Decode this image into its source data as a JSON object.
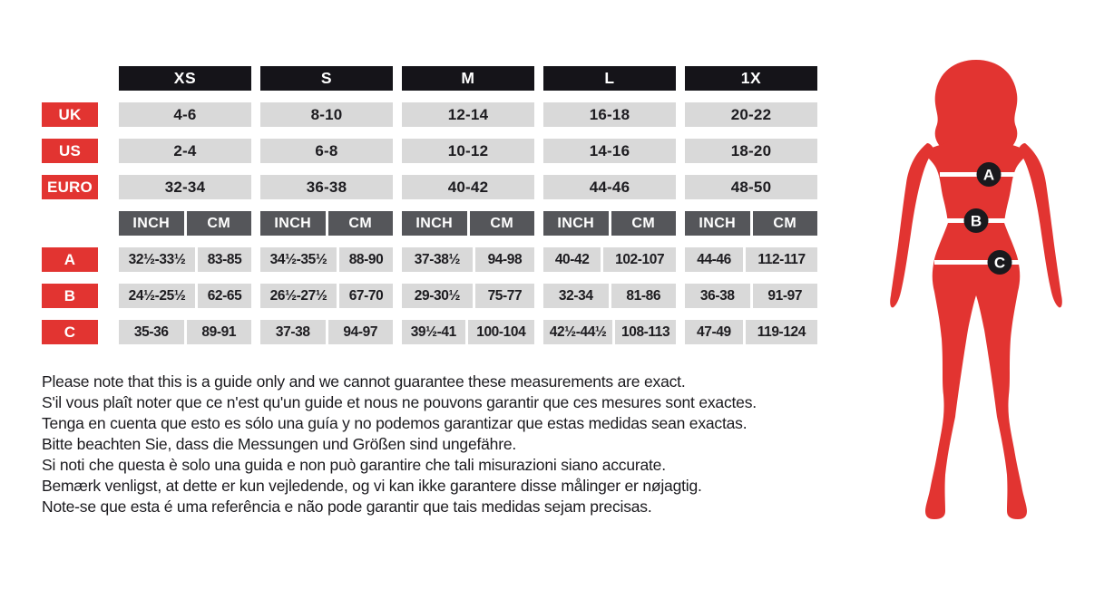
{
  "colors": {
    "accent_red": "#e23431",
    "header_black": "#151419",
    "unit_header_gray": "#55565a",
    "cell_gray": "#d9d9d9",
    "text": "#1d1c20",
    "silhouette_red": "#e23431",
    "marker_black": "#1a191d"
  },
  "chart_data": {
    "type": "table",
    "size_columns": [
      "XS",
      "S",
      "M",
      "L",
      "1X"
    ],
    "unit_headers": {
      "inch": "INCH",
      "cm": "CM"
    },
    "size_conversions": [
      {
        "region": "UK",
        "values": [
          "4-6",
          "8-10",
          "12-14",
          "16-18",
          "20-22"
        ]
      },
      {
        "region": "US",
        "values": [
          "2-4",
          "6-8",
          "10-12",
          "14-16",
          "18-20"
        ]
      },
      {
        "region": "EURO",
        "values": [
          "32-34",
          "36-38",
          "40-42",
          "44-46",
          "48-50"
        ]
      }
    ],
    "measurements": [
      {
        "label": "A",
        "inch": [
          "32½-33½",
          "34½-35½",
          "37-38½",
          "40-42",
          "44-46"
        ],
        "cm": [
          "83-85",
          "88-90",
          "94-98",
          "102-107",
          "112-117"
        ]
      },
      {
        "label": "B",
        "inch": [
          "24½-25½",
          "26½-27½",
          "29-30½",
          "32-34",
          "36-38"
        ],
        "cm": [
          "62-65",
          "67-70",
          "75-77",
          "81-86",
          "91-97"
        ]
      },
      {
        "label": "C",
        "inch": [
          "35-36",
          "37-38",
          "39½-41",
          "42½-44½",
          "47-49"
        ],
        "cm": [
          "89-91",
          "94-97",
          "100-104",
          "108-113",
          "119-124"
        ]
      }
    ]
  },
  "figure": {
    "markers": [
      "A",
      "B",
      "C"
    ]
  },
  "disclaimer": [
    "Please note that this is a guide only and we cannot guarantee these measurements are exact.",
    "S'il vous plaît noter que ce n'est qu'un guide et nous ne pouvons garantir que ces mesures sont exactes.",
    "Tenga en cuenta que esto es sólo una guía y no podemos garantizar que estas medidas sean exactas.",
    "Bitte beachten Sie, dass die Messungen und Größen sind ungefähre.",
    "Si noti che questa è solo una guida e non può garantire che tali misurazioni siano accurate.",
    "Bemærk venligst, at dette er kun vejledende, og vi kan ikke garantere disse målinger er nøjagtig.",
    "Note-se que esta é uma referência e não pode garantir que tais medidas sejam precisas."
  ]
}
